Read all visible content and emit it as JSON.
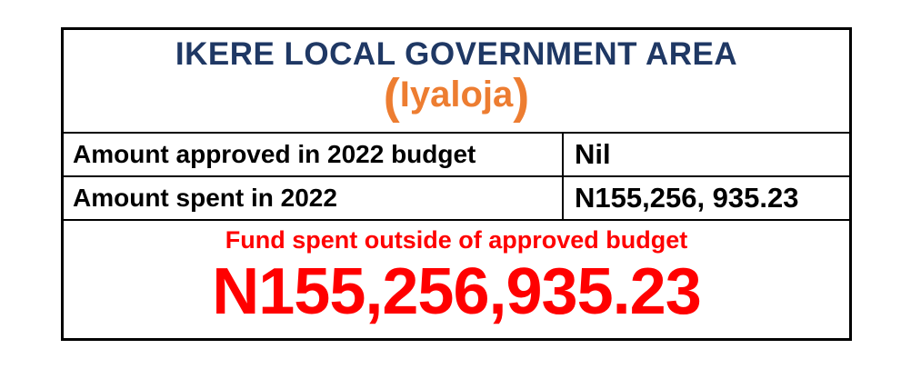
{
  "header": {
    "title": "IKERE LOCAL GOVERNMENT AREA",
    "subtitle": {
      "open_paren": "(",
      "text": "Iyaloja",
      "close_paren": ")"
    }
  },
  "rows": [
    {
      "label": "Amount approved in 2022 budget",
      "value": "Nil"
    },
    {
      "label": "Amount spent in 2022",
      "value": "N155,256, 935.23"
    }
  ],
  "footer": {
    "caption": "Fund spent outside of approved budget",
    "amount": "N155,256,935.23"
  },
  "colors": {
    "title_navy": "#1F3864",
    "subtitle_orange": "#ED7D31",
    "alert_red": "#FF0000",
    "text_black": "#000000",
    "border": "#000000",
    "background": "#FFFFFF"
  }
}
